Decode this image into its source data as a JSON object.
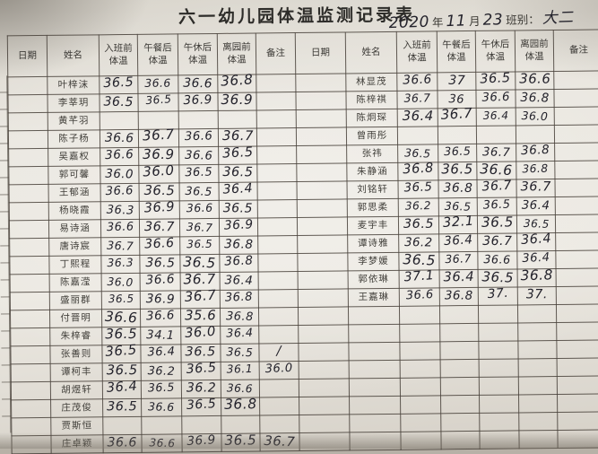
{
  "title": "六一幼儿园体温监测记录表",
  "date_line": {
    "year": "2020",
    "year_label": "年",
    "month": "11",
    "month_label": "月",
    "day": "23",
    "class_label": "班别：",
    "class_value": "大二"
  },
  "column_headers": [
    {
      "l1": "日期",
      "l2": ""
    },
    {
      "l1": "姓名",
      "l2": ""
    },
    {
      "l1": "入班前",
      "l2": "体温"
    },
    {
      "l1": "午餐后",
      "l2": "体温"
    },
    {
      "l1": "午休后",
      "l2": "体温"
    },
    {
      "l1": "离园前",
      "l2": "体温"
    },
    {
      "l1": "备注",
      "l2": ""
    }
  ],
  "left_rows": [
    {
      "name": "叶梓沫",
      "temps": [
        "36.5",
        "36.6",
        "36.6",
        "36.8"
      ],
      "note": ""
    },
    {
      "name": "李莘玥",
      "temps": [
        "36.5",
        "36.5",
        "36.9",
        "36.9"
      ],
      "note": ""
    },
    {
      "name": "黄芊羽",
      "temps": [
        "",
        "",
        "",
        ""
      ],
      "note": ""
    },
    {
      "name": "陈子杨",
      "temps": [
        "36.6",
        "36.7",
        "36.6",
        "36.7"
      ],
      "note": ""
    },
    {
      "name": "吴嘉权",
      "temps": [
        "36.6",
        "36.9",
        "36.6",
        "36.5"
      ],
      "note": ""
    },
    {
      "name": "郭可馨",
      "temps": [
        "36.0",
        "36.0",
        "36.5",
        "36.5"
      ],
      "note": ""
    },
    {
      "name": "王郁涵",
      "temps": [
        "36.6",
        "36.5",
        "36.5",
        "36.4"
      ],
      "note": ""
    },
    {
      "name": "杨晓霞",
      "temps": [
        "36.3",
        "36.9",
        "36.6",
        "36.5"
      ],
      "note": ""
    },
    {
      "name": "易诗涵",
      "temps": [
        "36.6",
        "36.7",
        "36.7",
        "36.9"
      ],
      "note": ""
    },
    {
      "name": "唐诗宸",
      "temps": [
        "36.7",
        "36.6",
        "36.5",
        "36.8"
      ],
      "note": ""
    },
    {
      "name": "丁熙程",
      "temps": [
        "36.3",
        "36.5",
        "36.5",
        "36.8"
      ],
      "note": ""
    },
    {
      "name": "陈嘉滢",
      "temps": [
        "36.0",
        "36.6",
        "36.7",
        "36.4"
      ],
      "note": ""
    },
    {
      "name": "盛丽群",
      "temps": [
        "36.5",
        "36.9",
        "36.7",
        "36.8"
      ],
      "note": ""
    },
    {
      "name": "付晋明",
      "temps": [
        "36.6",
        "36.6",
        "35.6",
        "36.8"
      ],
      "note": ""
    },
    {
      "name": "朱梓睿",
      "temps": [
        "36.5",
        "34.1",
        "36.0",
        "36.4"
      ],
      "note": ""
    },
    {
      "name": "张善则",
      "temps": [
        "36.5",
        "36.4",
        "36.5",
        "36.5"
      ],
      "note": "/"
    },
    {
      "name": "谭柯丰",
      "temps": [
        "36.5",
        "36.2",
        "36.5",
        "36.1"
      ],
      "note": "36.0"
    },
    {
      "name": "胡煜轩",
      "temps": [
        "36.4",
        "36.5",
        "36.2",
        "36.6"
      ],
      "note": ""
    },
    {
      "name": "庄茂俊",
      "temps": [
        "36.5",
        "36.6",
        "36.5",
        "36.8"
      ],
      "note": ""
    },
    {
      "name": "贾斯恒",
      "temps": [
        "",
        "",
        "",
        ""
      ],
      "note": ""
    },
    {
      "name": "庄卓颖",
      "temps": [
        "36.6",
        "36.6",
        "36.9",
        "36.5"
      ],
      "note": "36.7"
    }
  ],
  "right_rows": [
    {
      "name": "林显茂",
      "temps": [
        "36.6",
        "37",
        "36.5",
        "36.6"
      ],
      "note": ""
    },
    {
      "name": "陈梓祺",
      "temps": [
        "36.7",
        "36",
        "36.6",
        "36.8"
      ],
      "note": ""
    },
    {
      "name": "陈炯琛",
      "temps": [
        "36.4",
        "36.7",
        "36.4",
        "36.0"
      ],
      "note": ""
    },
    {
      "name": "曾雨彤",
      "temps": [
        "",
        "",
        "",
        ""
      ],
      "note": ""
    },
    {
      "name": "张祎",
      "temps": [
        "36.5",
        "36.5",
        "36.7",
        "36.8"
      ],
      "note": ""
    },
    {
      "name": "朱静涵",
      "temps": [
        "36.8",
        "36.5",
        "36.6",
        "36.8"
      ],
      "note": ""
    },
    {
      "name": "刘铭轩",
      "temps": [
        "36.5",
        "36.8",
        "36.7",
        "36.7"
      ],
      "note": ""
    },
    {
      "name": "郭思柔",
      "temps": [
        "36.2",
        "36.5",
        "36.5",
        "36.4"
      ],
      "note": ""
    },
    {
      "name": "麦宇丰",
      "temps": [
        "36.5",
        "32.1",
        "36.5",
        "36.5"
      ],
      "note": ""
    },
    {
      "name": "谭诗雅",
      "temps": [
        "36.2",
        "36.4",
        "36.7",
        "36.4"
      ],
      "note": ""
    },
    {
      "name": "李梦媛",
      "temps": [
        "36.5",
        "36.7",
        "36.6",
        "36.4"
      ],
      "note": ""
    },
    {
      "name": "郭依琳",
      "temps": [
        "37.1",
        "36.4",
        "36.5",
        "36.8"
      ],
      "note": ""
    },
    {
      "name": "王嘉琳",
      "temps": [
        "36.6",
        "36.8",
        "37.",
        "37."
      ],
      "note": ""
    },
    {
      "name": "",
      "temps": [
        "",
        "",
        "",
        ""
      ],
      "note": ""
    },
    {
      "name": "",
      "temps": [
        "",
        "",
        "",
        ""
      ],
      "note": ""
    },
    {
      "name": "",
      "temps": [
        "",
        "",
        "",
        ""
      ],
      "note": ""
    },
    {
      "name": "",
      "temps": [
        "",
        "",
        "",
        ""
      ],
      "note": ""
    },
    {
      "name": "",
      "temps": [
        "",
        "",
        "",
        ""
      ],
      "note": ""
    },
    {
      "name": "",
      "temps": [
        "",
        "",
        "",
        ""
      ],
      "note": ""
    },
    {
      "name": "",
      "temps": [
        "",
        "",
        "",
        ""
      ],
      "note": ""
    },
    {
      "name": "",
      "temps": [
        "",
        "",
        "",
        ""
      ],
      "note": ""
    }
  ],
  "colors": {
    "paper": "#ece9e2",
    "ink": "#24232c",
    "print_text": "#3a3834",
    "grid_line": "#46403a"
  }
}
